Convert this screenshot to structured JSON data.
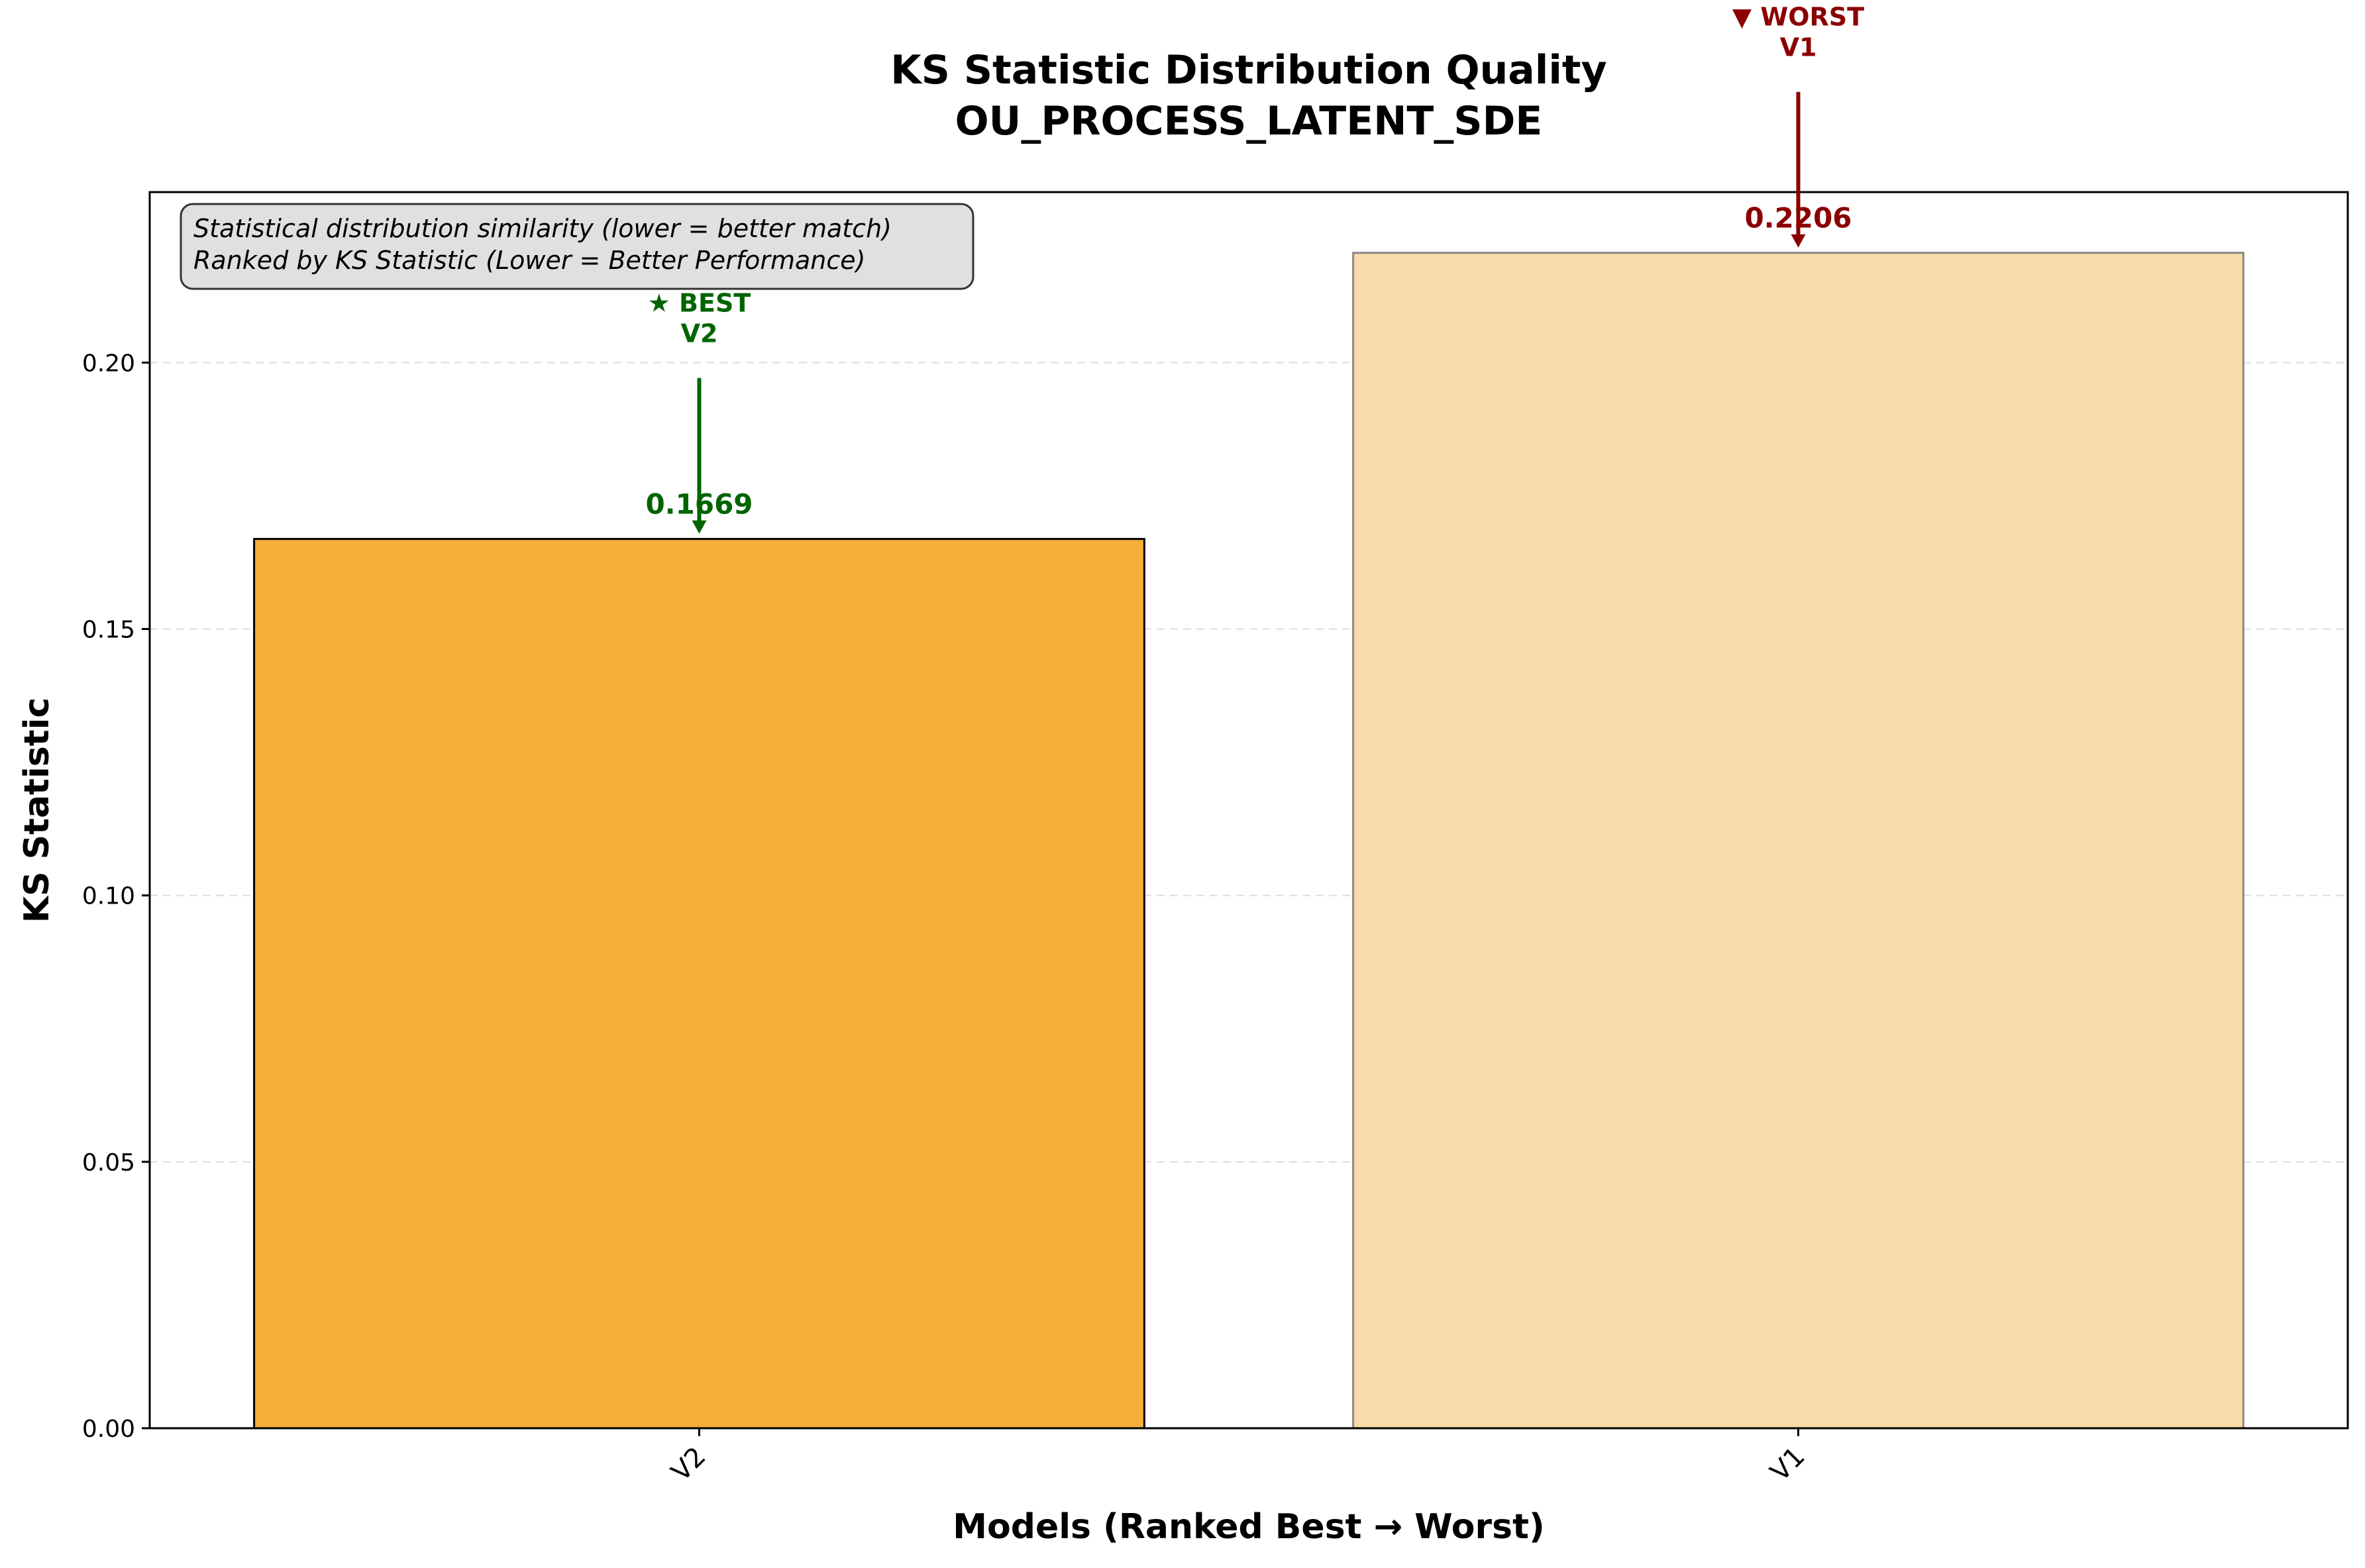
{
  "chart_data": {
    "type": "bar",
    "title": "KS Statistic Distribution Quality",
    "subtitle": "OU_PROCESS_LATENT_SDE",
    "xlabel": "Models (Ranked Best → Worst)",
    "ylabel": "KS Statistic",
    "categories": [
      "V2",
      "V1"
    ],
    "values": [
      0.1669,
      0.2206
    ],
    "value_labels": [
      "0.1669",
      "0.2206"
    ],
    "ylim": [
      0,
      0.232
    ],
    "yticks": [
      0.0,
      0.05,
      0.1,
      0.15,
      0.2
    ],
    "ytick_labels": [
      "0.00",
      "0.05",
      "0.10",
      "0.15",
      "0.20"
    ],
    "grid": "y-dashed",
    "bar_colors": [
      "#f5af3a",
      "#f9daa9"
    ],
    "bar_edge_colors": [
      "#000000",
      "#888888"
    ],
    "info_box": [
      "Statistical distribution similarity (lower = better match)",
      "Ranked by KS Statistic (Lower = Better Performance)"
    ],
    "annotations": [
      {
        "line1": "★ BEST",
        "line2": "V2",
        "color": "#006400",
        "index": 0
      },
      {
        "line1": "▼ WORST",
        "line2": "V1",
        "color": "#8b0000",
        "index": 1
      }
    ]
  }
}
